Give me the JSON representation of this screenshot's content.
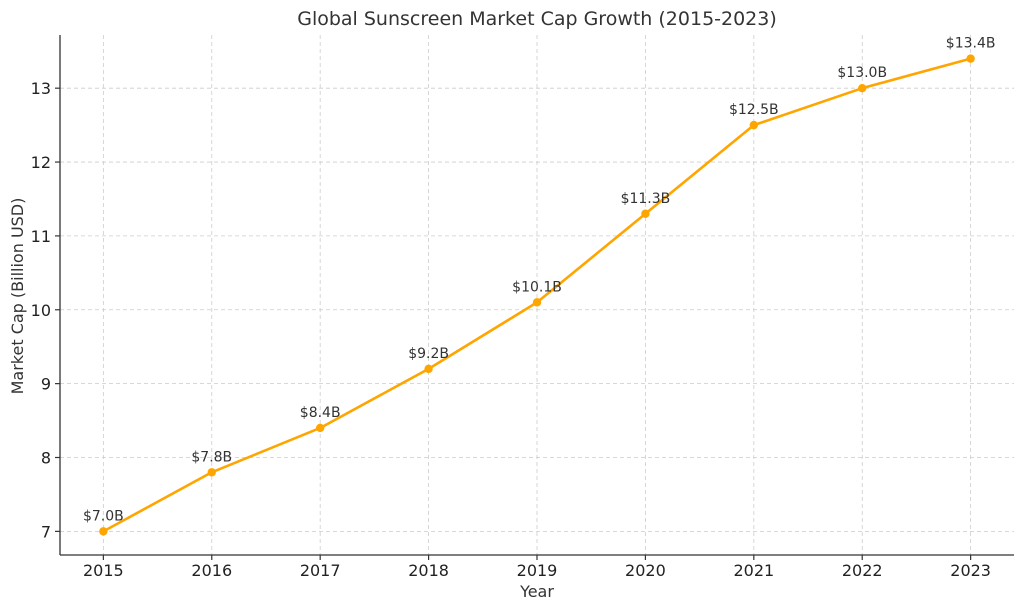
{
  "chart_data": {
    "type": "line",
    "title": "Global Sunscreen Market Cap Growth (2015-2023)",
    "xlabel": "Year",
    "ylabel": "Market Cap (Billion USD)",
    "x": [
      2015,
      2016,
      2017,
      2018,
      2019,
      2020,
      2021,
      2022,
      2023
    ],
    "series": [
      {
        "values": [
          7.0,
          7.8,
          8.4,
          9.2,
          10.1,
          11.3,
          12.5,
          13.0,
          13.4
        ],
        "color": "#FFA500"
      }
    ],
    "data_labels": [
      "$7.0B",
      "$7.8B",
      "$8.4B",
      "$9.2B",
      "$10.1B",
      "$11.3B",
      "$12.5B",
      "$13.0B",
      "$13.4B"
    ],
    "yticks": [
      7,
      8,
      9,
      10,
      11,
      12,
      13
    ],
    "xlim": [
      2014.6,
      2023.4
    ],
    "ylim": [
      6.68,
      13.72
    ],
    "grid": true,
    "marker": "circle"
  }
}
